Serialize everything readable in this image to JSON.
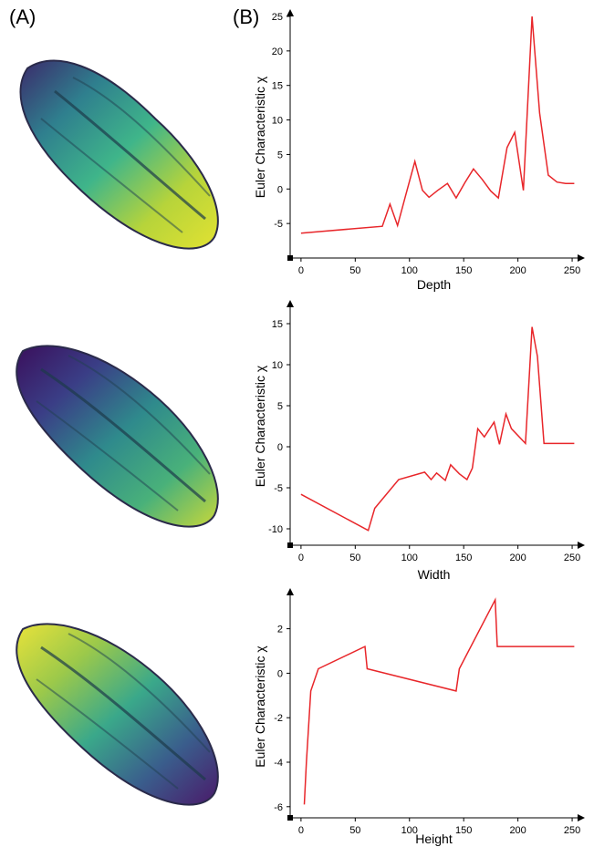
{
  "panels": {
    "a_label": "(A)",
    "b_label": "(B)"
  },
  "seeds": [
    {
      "name": "seed-depth-colored",
      "colors": [
        "#3b2a6b",
        "#2f7f8e",
        "#3fb58a",
        "#b7d43a",
        "#e2e232"
      ]
    },
    {
      "name": "seed-width-colored",
      "colors": [
        "#3a0f5c",
        "#3a3e86",
        "#2f8a8c",
        "#49b17a",
        "#c8d83a"
      ]
    },
    {
      "name": "seed-height-colored",
      "colors": [
        "#e8e23a",
        "#9cc94a",
        "#3aa88a",
        "#3a5d8c",
        "#4a1a6a"
      ]
    }
  ],
  "line_color": "#e8262a",
  "chart_data": [
    {
      "type": "line",
      "title": "",
      "xlabel": "Depth",
      "ylabel": "Euler Characteristic χ",
      "xlim": [
        -10,
        255
      ],
      "ylim": [
        -10,
        25
      ],
      "xticks": [
        0,
        50,
        100,
        150,
        200,
        250
      ],
      "yticks": [
        -5,
        0,
        5,
        10,
        15,
        20,
        25
      ],
      "x": [
        0,
        75,
        82,
        89,
        96,
        105,
        112,
        118,
        126,
        135,
        143,
        151,
        159,
        167,
        175,
        182,
        190,
        197,
        205,
        213,
        220,
        228,
        236,
        244,
        252
      ],
      "y": [
        -6.4,
        -5.4,
        -2.2,
        -5.3,
        -1.2,
        4.0,
        -0.2,
        -1.2,
        -0.2,
        0.8,
        -1.3,
        0.9,
        2.9,
        1.4,
        -0.3,
        -1.3,
        6.0,
        8.2,
        -0.2,
        25.0,
        11.0,
        2.0,
        1.0,
        0.8,
        0.8
      ]
    },
    {
      "type": "line",
      "title": "",
      "xlabel": "Width",
      "ylabel": "Euler Characteristic χ",
      "xlim": [
        -10,
        255
      ],
      "ylim": [
        -12,
        17
      ],
      "xticks": [
        0,
        50,
        100,
        150,
        200,
        250
      ],
      "yticks": [
        -10,
        -5,
        0,
        5,
        10,
        15
      ],
      "x": [
        0,
        62,
        68,
        90,
        114,
        120,
        125,
        133,
        138,
        146,
        153,
        158,
        163,
        169,
        178,
        183,
        189,
        194,
        207,
        213,
        218,
        224,
        230,
        238,
        245,
        252
      ],
      "y": [
        -5.8,
        -10.2,
        -7.5,
        -4.0,
        -3.1,
        -4.0,
        -3.2,
        -4.1,
        -2.2,
        -3.3,
        -4.0,
        -2.6,
        2.2,
        1.2,
        3.0,
        0.3,
        4.0,
        2.2,
        0.4,
        14.6,
        11.0,
        0.4,
        0.4,
        0.4,
        0.4,
        0.4
      ]
    },
    {
      "type": "line",
      "title": "",
      "xlabel": "Height",
      "ylabel": "Euler Characteristic χ",
      "xlim": [
        -10,
        255
      ],
      "ylim": [
        -6.5,
        3.5
      ],
      "xticks": [
        0,
        50,
        100,
        150,
        200,
        250
      ],
      "yticks": [
        -6,
        -4,
        -2,
        0,
        2
      ],
      "x": [
        3,
        5,
        9,
        16,
        59,
        61,
        143,
        146,
        179,
        181,
        252
      ],
      "y": [
        -5.9,
        -4.0,
        -0.8,
        0.2,
        1.2,
        0.2,
        -0.8,
        0.2,
        3.3,
        1.2,
        1.2
      ]
    }
  ]
}
